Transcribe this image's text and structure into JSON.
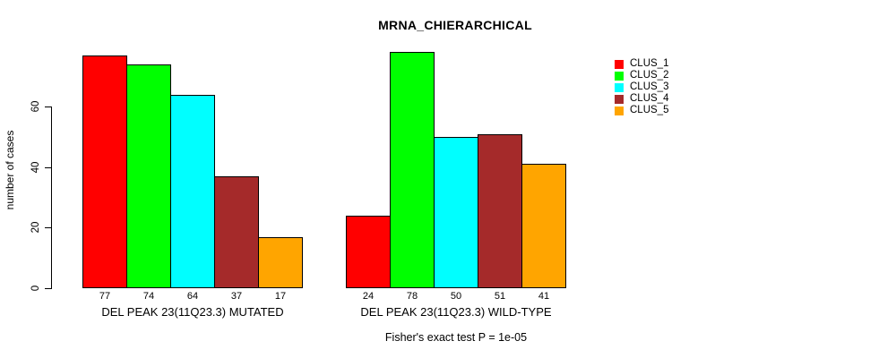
{
  "title": "MRNA_CHIERARCHICAL",
  "chart_data": {
    "type": "bar",
    "title": "MRNA_CHIERARCHICAL",
    "xlabel": "",
    "ylabel": "number of cases",
    "yticks": [
      0,
      20,
      40,
      60
    ],
    "ylim": [
      0,
      78
    ],
    "grid": false,
    "legend_position": "top-right",
    "categories": [
      "DEL PEAK 23(11Q23.3) MUTATED",
      "DEL PEAK 23(11Q23.3) WILD-TYPE"
    ],
    "series": [
      {
        "name": "CLUS_1",
        "color": "#FF0000",
        "values": [
          77,
          24
        ]
      },
      {
        "name": "CLUS_2",
        "color": "#00FF00",
        "values": [
          74,
          78
        ]
      },
      {
        "name": "CLUS_3",
        "color": "#00FFFF",
        "values": [
          64,
          50
        ]
      },
      {
        "name": "CLUS_4",
        "color": "#A52A2A",
        "values": [
          37,
          51
        ]
      },
      {
        "name": "CLUS_5",
        "color": "#FFA500",
        "values": [
          17,
          41
        ]
      }
    ],
    "bar_value_labels": [
      [
        "77",
        "74",
        "64",
        "37",
        "17"
      ],
      [
        "24",
        "78",
        "50",
        "51",
        "41"
      ]
    ],
    "annotation": "Fisher's exact test P = 1e-05"
  }
}
